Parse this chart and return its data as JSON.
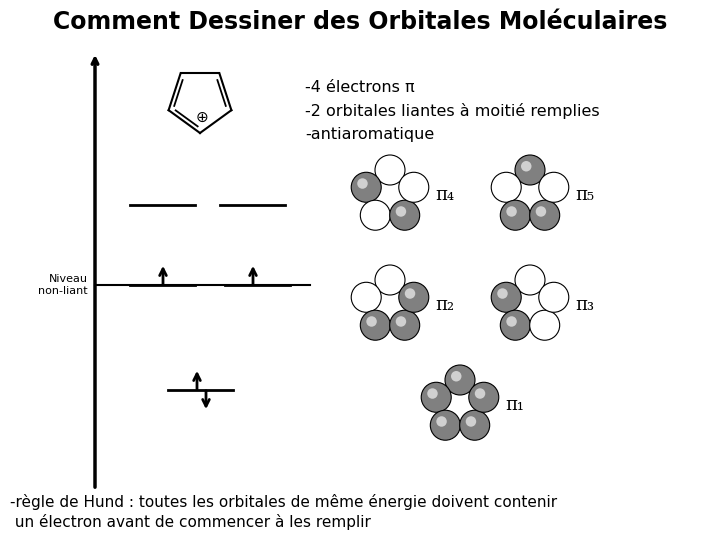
{
  "title": "Comment Dessiner des Orbitales Moléculaires",
  "title_fontsize": 17,
  "background_color": "#ffffff",
  "text_color": "#000000",
  "bullet_text": [
    "-4 électrons π",
    "-2 orbitales liantes à moitié remplies",
    "-antiaromatique"
  ],
  "bottom_text_line1": "-règle de Hund : toutes les orbitales de même énergie doivent contenir",
  "bottom_text_line2": " un électron avant de commencer à les remplir",
  "niveau_label": "Niveau\nnon-liant",
  "lobe_gray": "#909090",
  "lobe_gray_dark": "#606060",
  "lobe_white": "#ffffff",
  "lobe_edge": "#000000"
}
